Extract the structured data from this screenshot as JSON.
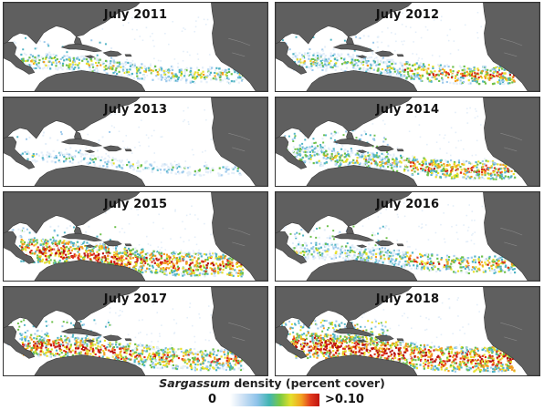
{
  "panels": [
    {
      "title": "July 2011",
      "level": 0.35,
      "caribbean": 0.35,
      "east": 0.3,
      "gulf": 0.05
    },
    {
      "title": "July 2012",
      "level": 0.5,
      "caribbean": 0.15,
      "east": 0.65,
      "gulf": 0.1
    },
    {
      "title": "July 2013",
      "level": 0.04,
      "caribbean": 0.04,
      "east": 0.02,
      "gulf": 0.03
    },
    {
      "title": "July 2014",
      "level": 0.55,
      "caribbean": 0.35,
      "east": 0.65,
      "gulf": 0.3
    },
    {
      "title": "July 2015",
      "level": 0.9,
      "caribbean": 0.9,
      "east": 0.75,
      "gulf": 0.2
    },
    {
      "title": "July 2016",
      "level": 0.45,
      "caribbean": 0.2,
      "east": 0.6,
      "gulf": 0.2
    },
    {
      "title": "July 2017",
      "level": 0.75,
      "caribbean": 0.8,
      "east": 0.6,
      "gulf": 0.25
    },
    {
      "title": "July 2018",
      "level": 1.0,
      "caribbean": 1.0,
      "east": 0.85,
      "gulf": 0.6
    }
  ],
  "legend": {
    "title_italic": "Sargassum",
    "title_rest": " density (percent cover)",
    "min_label": "0",
    "max_label": ">0.10"
  },
  "colors": {
    "land": "#5f5f5f",
    "coast": "#3a3a3a",
    "ocean": "#ffffff",
    "scale": [
      "#e3eef9",
      "#9cc9ec",
      "#4fb3c4",
      "#6cc04a",
      "#e8e02a",
      "#f39c1f",
      "#dd2b17",
      "#b80f0b"
    ]
  }
}
